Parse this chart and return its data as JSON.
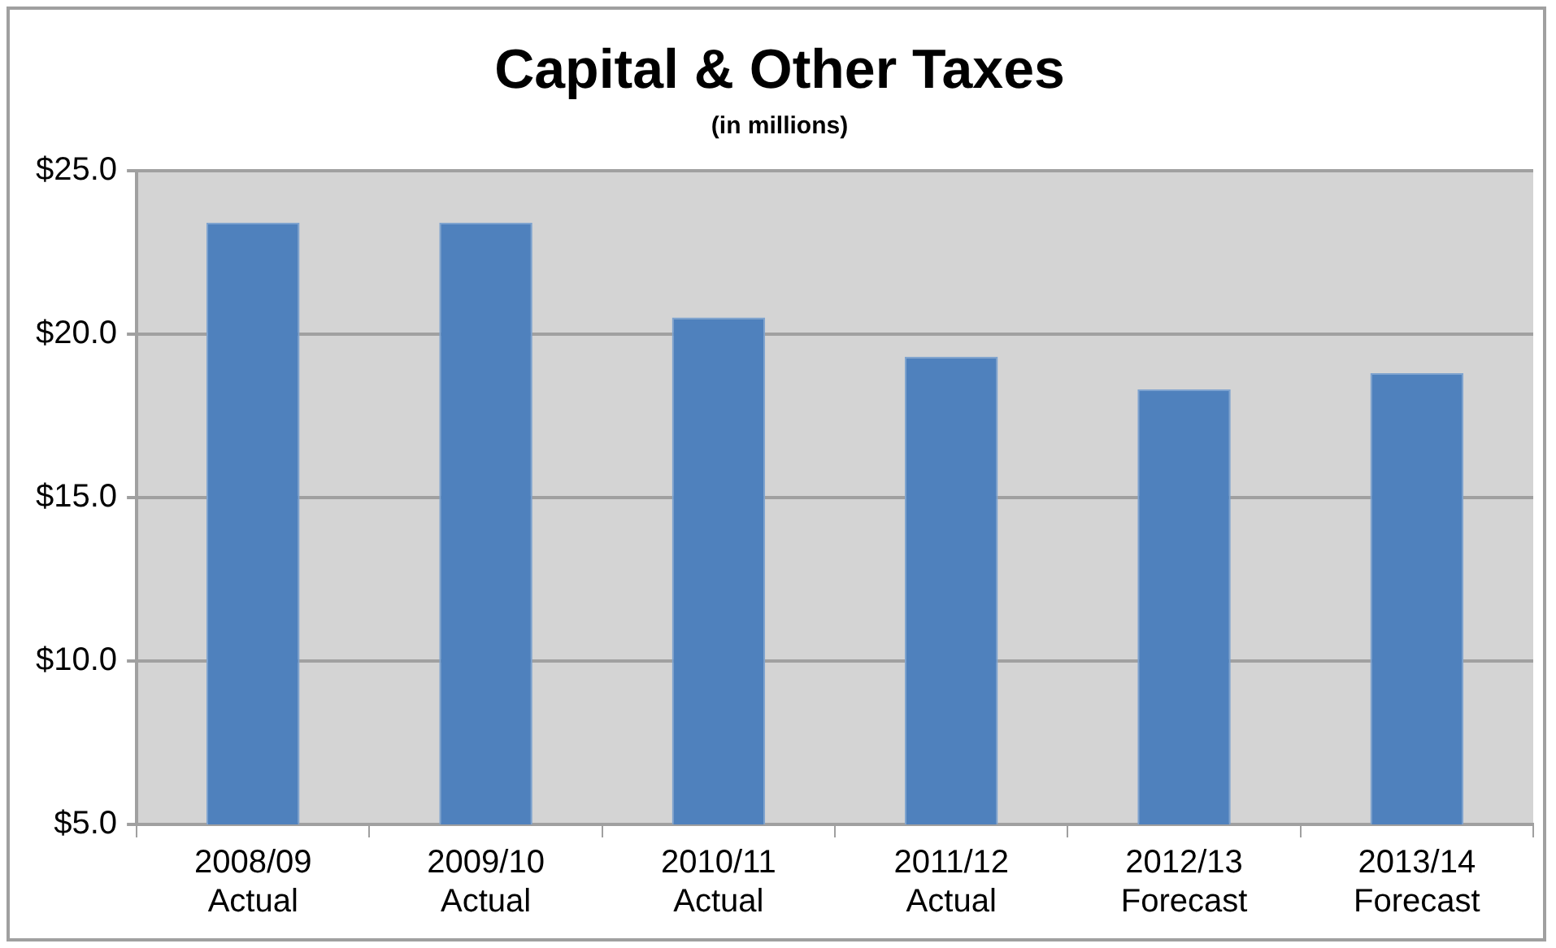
{
  "chart_data": {
    "type": "bar",
    "title": "Capital & Other Taxes",
    "subtitle": "(in millions)",
    "categories": [
      "2008/09\nActual",
      "2009/10\nActual",
      "2010/11\nActual",
      "2011/12\nActual",
      "2012/13\nForecast",
      "2013/14\nForecast"
    ],
    "values": [
      23.4,
      23.4,
      20.5,
      19.3,
      18.3,
      18.8
    ],
    "color": "#4f81bd",
    "ylim": [
      5,
      25
    ],
    "yticks": [
      {
        "value": 5,
        "label": "$5.0"
      },
      {
        "value": 10,
        "label": "$10.0"
      },
      {
        "value": 15,
        "label": "$15.0"
      },
      {
        "value": 20,
        "label": "$20.0"
      },
      {
        "value": 25,
        "label": "$25.0"
      }
    ],
    "grid": "y",
    "legend": false
  }
}
